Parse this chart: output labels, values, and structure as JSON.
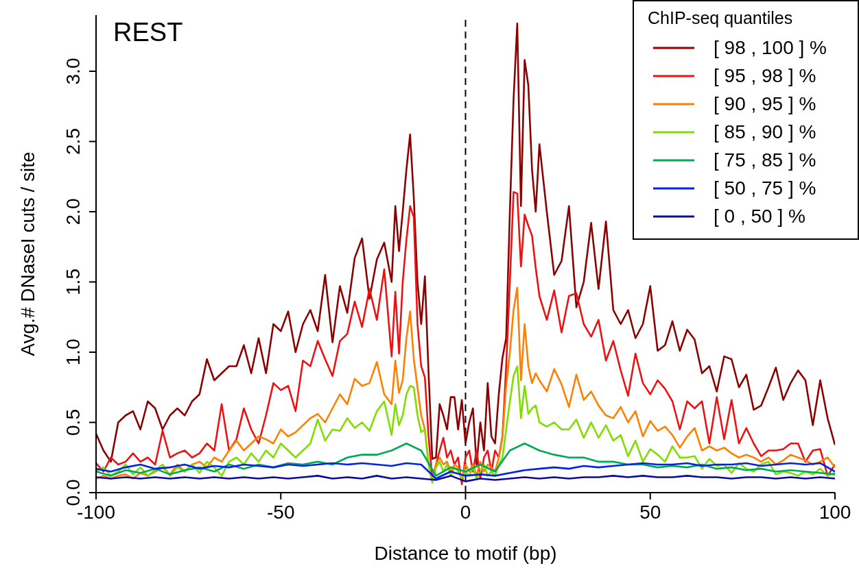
{
  "chart_data": {
    "type": "line",
    "title": "REST",
    "xlabel": "Distance to motif (bp)",
    "ylabel": "Avg.# DNaseI cuts / site",
    "legend_title": "ChIP-seq quantiles",
    "legend": "top right",
    "xlim": [
      -100,
      100
    ],
    "xticks": [
      -100,
      -50,
      0,
      50,
      100
    ],
    "ylim": [
      0,
      3.4
    ],
    "yticks": [
      {
        "value": 0,
        "label": "0.0"
      },
      0.5,
      {
        "value": 1,
        "label": "1.0"
      },
      1.5,
      {
        "value": 2,
        "label": "2.0"
      },
      2.5,
      {
        "value": 3,
        "label": "3.0"
      }
    ],
    "ref_lines": [
      {
        "axis": "x",
        "value": 0,
        "color": "#000000",
        "line_style": "dashed"
      }
    ],
    "series": [
      {
        "name": "[ 98 , 100 ] %",
        "color": "#8b0000",
        "x": [
          -100,
          -98,
          -96,
          -94,
          -92,
          -90,
          -88,
          -86,
          -84,
          -82,
          -80,
          -78,
          -76,
          -74,
          -72,
          -70,
          -68,
          -66,
          -64,
          -62,
          -60,
          -58,
          -56,
          -54,
          -52,
          -50,
          -48,
          -46,
          -44,
          -42,
          -40,
          -38,
          -36,
          -34,
          -32,
          -30,
          -28,
          -26,
          -24,
          -22,
          -20,
          -19,
          -18,
          -17,
          -16,
          -15,
          -14,
          -13,
          -12,
          -11,
          -10,
          -9,
          -8,
          -7,
          -6,
          -5,
          -4,
          -3,
          -2,
          -1,
          0,
          1,
          2,
          3,
          4,
          5,
          6,
          7,
          8,
          9,
          10,
          11,
          12,
          13,
          14,
          15,
          16,
          17,
          18,
          19,
          20,
          22,
          24,
          26,
          28,
          30,
          32,
          34,
          36,
          38,
          40,
          42,
          44,
          46,
          48,
          50,
          52,
          54,
          56,
          58,
          60,
          62,
          64,
          66,
          68,
          70,
          72,
          74,
          76,
          78,
          80,
          82,
          84,
          86,
          88,
          90,
          92,
          94,
          96,
          98,
          100
        ],
        "values": [
          0.42,
          0.3,
          0.22,
          0.5,
          0.55,
          0.58,
          0.45,
          0.65,
          0.6,
          0.45,
          0.55,
          0.6,
          0.55,
          0.65,
          0.7,
          0.95,
          0.8,
          0.85,
          0.9,
          0.9,
          1.05,
          0.85,
          1.1,
          0.85,
          1.2,
          1.15,
          1.29,
          1.0,
          1.2,
          1.3,
          1.15,
          1.55,
          1.07,
          1.47,
          1.28,
          1.67,
          1.81,
          1.38,
          1.66,
          1.78,
          1.5,
          2.04,
          1.72,
          2.0,
          2.3,
          2.55,
          2.1,
          1.5,
          1.2,
          1.54,
          0.85,
          0.24,
          0.25,
          0.63,
          0.55,
          0.45,
          0.68,
          0.68,
          0.45,
          0.66,
          0.35,
          0.5,
          0.6,
          0.2,
          0.5,
          0.3,
          0.78,
          0.4,
          0.35,
          0.7,
          0.96,
          1.1,
          2.0,
          2.8,
          3.34,
          2.04,
          3.08,
          2.9,
          2.3,
          2.0,
          2.48,
          2.0,
          1.55,
          1.65,
          2.04,
          1.32,
          1.5,
          1.92,
          1.45,
          1.93,
          1.3,
          1.2,
          1.3,
          1.1,
          1.2,
          1.47,
          1.01,
          1.05,
          1.22,
          1.01,
          1.16,
          1.09,
          0.85,
          0.9,
          0.72,
          0.97,
          0.95,
          0.75,
          0.84,
          0.59,
          0.62,
          0.75,
          0.89,
          0.66,
          0.78,
          0.87,
          0.8,
          0.48,
          0.8,
          0.53,
          0.34
        ]
      },
      {
        "name": "[ 95 , 98 ] %",
        "color": "#ee1111",
        "x": [
          -100,
          -98,
          -96,
          -94,
          -92,
          -90,
          -88,
          -86,
          -84,
          -82,
          -80,
          -78,
          -76,
          -74,
          -72,
          -70,
          -68,
          -66,
          -64,
          -62,
          -60,
          -58,
          -56,
          -54,
          -52,
          -50,
          -48,
          -46,
          -44,
          -42,
          -40,
          -38,
          -36,
          -34,
          -32,
          -30,
          -28,
          -26,
          -24,
          -22,
          -20,
          -19,
          -18,
          -17,
          -16,
          -15,
          -14,
          -13,
          -12,
          -11,
          -10,
          -9,
          -8,
          -7,
          -6,
          -5,
          -4,
          -3,
          -2,
          -1,
          0,
          1,
          2,
          3,
          4,
          5,
          6,
          7,
          8,
          9,
          10,
          11,
          12,
          13,
          14,
          15,
          16,
          17,
          18,
          19,
          20,
          22,
          24,
          26,
          28,
          30,
          32,
          34,
          36,
          38,
          40,
          42,
          44,
          46,
          48,
          50,
          52,
          54,
          56,
          58,
          60,
          62,
          64,
          66,
          68,
          70,
          72,
          74,
          76,
          78,
          80,
          82,
          84,
          86,
          88,
          90,
          92,
          94,
          96,
          98,
          100
        ],
        "values": [
          0.21,
          0.15,
          0.25,
          0.2,
          0.22,
          0.28,
          0.22,
          0.25,
          0.2,
          0.44,
          0.25,
          0.28,
          0.3,
          0.25,
          0.28,
          0.35,
          0.3,
          0.63,
          0.3,
          0.38,
          0.6,
          0.45,
          0.35,
          0.55,
          0.78,
          0.73,
          0.76,
          0.58,
          0.94,
          0.9,
          1.08,
          0.95,
          0.83,
          1.08,
          1.13,
          1.36,
          1.18,
          1.45,
          1.23,
          1.59,
          0.97,
          1.43,
          0.99,
          1.5,
          1.8,
          2.04,
          1.96,
          1.2,
          0.9,
          0.82,
          0.4,
          0.1,
          0.2,
          0.3,
          0.39,
          0.25,
          0.3,
          0.2,
          0.25,
          0.06,
          0.25,
          0.3,
          0.15,
          0.3,
          0.1,
          0.25,
          0.3,
          0.15,
          0.3,
          0.25,
          0.4,
          0.9,
          1.5,
          2.14,
          2.13,
          1.61,
          1.98,
          1.9,
          1.83,
          1.6,
          1.4,
          1.23,
          1.44,
          1.14,
          1.4,
          1.42,
          1.2,
          1.11,
          1.23,
          0.94,
          1.08,
          0.87,
          0.69,
          0.99,
          0.78,
          0.7,
          0.8,
          0.74,
          0.65,
          0.45,
          0.65,
          0.6,
          0.65,
          0.35,
          0.68,
          0.38,
          0.66,
          0.35,
          0.46,
          0.35,
          0.26,
          0.3,
          0.3,
          0.31,
          0.35,
          0.35,
          0.22,
          0.3,
          0.31,
          0.12,
          0.2
        ]
      },
      {
        "name": "[ 90 , 95 ] %",
        "color": "#ff7f00",
        "x": [
          -100,
          -98,
          -96,
          -94,
          -92,
          -90,
          -88,
          -86,
          -84,
          -82,
          -80,
          -78,
          -76,
          -74,
          -72,
          -70,
          -68,
          -66,
          -64,
          -62,
          -60,
          -58,
          -56,
          -54,
          -52,
          -50,
          -48,
          -46,
          -44,
          -42,
          -40,
          -38,
          -36,
          -34,
          -32,
          -30,
          -28,
          -26,
          -24,
          -22,
          -20,
          -19,
          -18,
          -17,
          -16,
          -15,
          -14,
          -13,
          -12,
          -11,
          -10,
          -9,
          -8,
          -7,
          -6,
          -5,
          -4,
          -3,
          -2,
          -1,
          0,
          1,
          2,
          3,
          4,
          5,
          6,
          7,
          8,
          9,
          10,
          11,
          12,
          13,
          14,
          15,
          16,
          17,
          18,
          19,
          20,
          22,
          24,
          26,
          28,
          30,
          32,
          34,
          36,
          38,
          40,
          42,
          44,
          46,
          48,
          50,
          52,
          54,
          56,
          58,
          60,
          62,
          64,
          66,
          68,
          70,
          72,
          74,
          76,
          78,
          80,
          82,
          84,
          86,
          88,
          90,
          92,
          94,
          96,
          98,
          100
        ],
        "values": [
          0.1,
          0.12,
          0.1,
          0.12,
          0.13,
          0.1,
          0.14,
          0.12,
          0.15,
          0.18,
          0.13,
          0.2,
          0.15,
          0.2,
          0.22,
          0.18,
          0.25,
          0.22,
          0.3,
          0.37,
          0.3,
          0.35,
          0.4,
          0.38,
          0.35,
          0.45,
          0.4,
          0.43,
          0.48,
          0.53,
          0.56,
          0.5,
          0.6,
          0.7,
          0.63,
          0.81,
          0.76,
          0.78,
          0.93,
          0.7,
          0.63,
          0.94,
          0.71,
          0.8,
          1.1,
          1.29,
          0.95,
          0.75,
          0.55,
          0.45,
          0.2,
          0.08,
          0.2,
          0.25,
          0.2,
          0.22,
          0.15,
          0.2,
          0.18,
          0.1,
          0.2,
          0.15,
          0.2,
          0.12,
          0.22,
          0.15,
          0.2,
          0.18,
          0.15,
          0.25,
          0.4,
          0.76,
          1.0,
          1.3,
          1.46,
          0.8,
          1.2,
          0.9,
          0.78,
          0.85,
          0.8,
          0.72,
          0.88,
          0.77,
          0.61,
          0.84,
          0.66,
          0.72,
          0.62,
          0.55,
          0.53,
          0.61,
          0.5,
          0.58,
          0.4,
          0.51,
          0.44,
          0.47,
          0.41,
          0.32,
          0.4,
          0.46,
          0.3,
          0.33,
          0.3,
          0.32,
          0.28,
          0.25,
          0.27,
          0.25,
          0.22,
          0.25,
          0.2,
          0.23,
          0.27,
          0.25,
          0.23,
          0.2,
          0.22,
          0.25,
          0.18
        ]
      },
      {
        "name": "[ 85 , 90 ] %",
        "color": "#7fdd00",
        "x": [
          -100,
          -98,
          -96,
          -94,
          -92,
          -90,
          -88,
          -86,
          -84,
          -82,
          -80,
          -78,
          -76,
          -74,
          -72,
          -70,
          -68,
          -66,
          -64,
          -62,
          -60,
          -58,
          -56,
          -54,
          -52,
          -50,
          -48,
          -46,
          -44,
          -42,
          -40,
          -38,
          -36,
          -34,
          -32,
          -30,
          -28,
          -26,
          -24,
          -22,
          -20,
          -19,
          -18,
          -17,
          -16,
          -15,
          -14,
          -13,
          -12,
          -11,
          -10,
          -9,
          -8,
          -7,
          -6,
          -5,
          -4,
          -3,
          -2,
          -1,
          0,
          1,
          2,
          3,
          4,
          5,
          6,
          7,
          8,
          9,
          10,
          11,
          12,
          13,
          14,
          15,
          16,
          17,
          18,
          19,
          20,
          22,
          24,
          26,
          28,
          30,
          32,
          34,
          36,
          38,
          40,
          42,
          44,
          46,
          48,
          50,
          52,
          54,
          56,
          58,
          60,
          62,
          64,
          66,
          68,
          70,
          72,
          74,
          76,
          78,
          80,
          82,
          84,
          86,
          88,
          90,
          92,
          94,
          96,
          98,
          100
        ],
        "values": [
          0.15,
          0.18,
          0.12,
          0.15,
          0.2,
          0.13,
          0.18,
          0.12,
          0.16,
          0.2,
          0.12,
          0.18,
          0.15,
          0.2,
          0.14,
          0.22,
          0.18,
          0.12,
          0.22,
          0.25,
          0.2,
          0.28,
          0.22,
          0.3,
          0.25,
          0.35,
          0.3,
          0.25,
          0.3,
          0.35,
          0.52,
          0.37,
          0.45,
          0.44,
          0.53,
          0.46,
          0.5,
          0.44,
          0.58,
          0.65,
          0.41,
          0.63,
          0.48,
          0.55,
          0.7,
          0.76,
          0.75,
          0.55,
          0.43,
          0.45,
          0.2,
          0.07,
          0.18,
          0.22,
          0.15,
          0.2,
          0.12,
          0.18,
          0.15,
          0.1,
          0.15,
          0.12,
          0.18,
          0.1,
          0.15,
          0.2,
          0.12,
          0.15,
          0.12,
          0.2,
          0.25,
          0.45,
          0.65,
          0.83,
          0.9,
          0.53,
          0.76,
          0.56,
          0.6,
          0.62,
          0.5,
          0.47,
          0.5,
          0.45,
          0.45,
          0.52,
          0.39,
          0.5,
          0.39,
          0.48,
          0.37,
          0.41,
          0.26,
          0.37,
          0.22,
          0.31,
          0.27,
          0.22,
          0.33,
          0.25,
          0.25,
          0.26,
          0.17,
          0.24,
          0.19,
          0.2,
          0.14,
          0.21,
          0.17,
          0.15,
          0.2,
          0.22,
          0.13,
          0.15,
          0.14,
          0.12,
          0.15,
          0.13,
          0.17,
          0.12,
          0.14
        ]
      },
      {
        "name": "[ 75 , 85 ] %",
        "color": "#00aa55",
        "x": [
          -100,
          -96,
          -92,
          -88,
          -84,
          -80,
          -76,
          -72,
          -68,
          -64,
          -60,
          -56,
          -52,
          -48,
          -44,
          -40,
          -36,
          -32,
          -28,
          -24,
          -20,
          -16,
          -12,
          -8,
          -4,
          0,
          4,
          8,
          12,
          16,
          20,
          24,
          28,
          32,
          36,
          40,
          44,
          48,
          52,
          56,
          60,
          64,
          68,
          72,
          76,
          80,
          84,
          88,
          92,
          96,
          100
        ],
        "values": [
          0.15,
          0.12,
          0.16,
          0.14,
          0.17,
          0.13,
          0.16,
          0.18,
          0.15,
          0.2,
          0.17,
          0.2,
          0.18,
          0.21,
          0.2,
          0.22,
          0.2,
          0.25,
          0.27,
          0.27,
          0.3,
          0.35,
          0.3,
          0.12,
          0.18,
          0.15,
          0.2,
          0.15,
          0.3,
          0.35,
          0.3,
          0.27,
          0.25,
          0.25,
          0.22,
          0.22,
          0.2,
          0.2,
          0.18,
          0.19,
          0.18,
          0.2,
          0.17,
          0.18,
          0.16,
          0.17,
          0.15,
          0.16,
          0.15,
          0.14,
          0.13
        ]
      },
      {
        "name": "[ 50 , 75 ] %",
        "color": "#0022ee",
        "x": [
          -100,
          -96,
          -92,
          -88,
          -84,
          -80,
          -76,
          -72,
          -68,
          -64,
          -60,
          -56,
          -52,
          -48,
          -44,
          -40,
          -36,
          -32,
          -28,
          -24,
          -20,
          -16,
          -12,
          -8,
          -4,
          0,
          4,
          8,
          12,
          16,
          20,
          24,
          28,
          32,
          36,
          40,
          44,
          48,
          52,
          56,
          60,
          64,
          68,
          72,
          76,
          80,
          84,
          88,
          92,
          96,
          100
        ],
        "values": [
          0.17,
          0.15,
          0.18,
          0.2,
          0.17,
          0.18,
          0.2,
          0.17,
          0.19,
          0.18,
          0.2,
          0.19,
          0.18,
          0.2,
          0.19,
          0.2,
          0.21,
          0.2,
          0.21,
          0.2,
          0.19,
          0.21,
          0.2,
          0.1,
          0.15,
          0.12,
          0.13,
          0.12,
          0.14,
          0.16,
          0.17,
          0.18,
          0.17,
          0.19,
          0.18,
          0.19,
          0.2,
          0.21,
          0.2,
          0.2,
          0.21,
          0.19,
          0.2,
          0.2,
          0.21,
          0.19,
          0.2,
          0.21,
          0.2,
          0.21,
          0.15
        ]
      },
      {
        "name": "[ 0 , 50 ] %",
        "color": "#0a0aa0",
        "x": [
          -100,
          -96,
          -92,
          -88,
          -84,
          -80,
          -76,
          -72,
          -68,
          -64,
          -60,
          -56,
          -52,
          -48,
          -44,
          -40,
          -36,
          -32,
          -28,
          -24,
          -20,
          -16,
          -12,
          -8,
          -4,
          0,
          4,
          8,
          12,
          16,
          20,
          24,
          28,
          32,
          36,
          40,
          44,
          48,
          52,
          56,
          60,
          64,
          68,
          72,
          76,
          80,
          84,
          88,
          92,
          96,
          100
        ],
        "values": [
          0.11,
          0.1,
          0.11,
          0.1,
          0.11,
          0.1,
          0.11,
          0.1,
          0.11,
          0.1,
          0.11,
          0.1,
          0.11,
          0.1,
          0.11,
          0.12,
          0.1,
          0.11,
          0.1,
          0.12,
          0.1,
          0.11,
          0.1,
          0.09,
          0.12,
          0.08,
          0.1,
          0.09,
          0.1,
          0.11,
          0.1,
          0.11,
          0.1,
          0.11,
          0.11,
          0.12,
          0.11,
          0.12,
          0.11,
          0.11,
          0.12,
          0.11,
          0.11,
          0.1,
          0.11,
          0.11,
          0.1,
          0.11,
          0.1,
          0.11,
          0.1
        ]
      }
    ]
  }
}
